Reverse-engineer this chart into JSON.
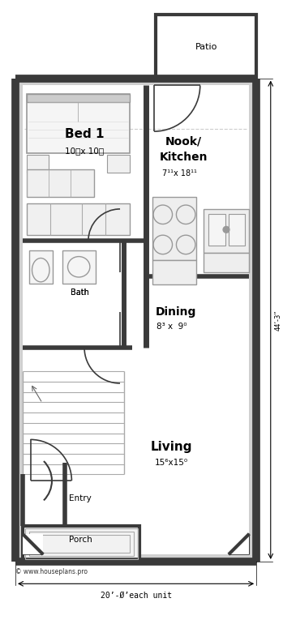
{
  "copyright": "© www.houseplans.pro",
  "dim_bottom": "20’-Ø’each unit",
  "dim_right": "44’-3”",
  "wall_color": "#3a3a3a",
  "light_gray": "#aaaaaa",
  "fixture_gray": "#999999",
  "fill_white": "#ffffff",
  "fill_light": "#f2f2f2",
  "fill_gray": "#d0d0d0"
}
